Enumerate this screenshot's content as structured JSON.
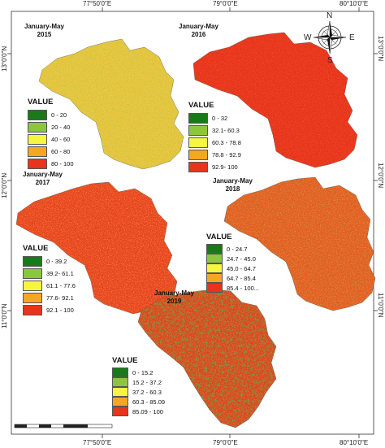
{
  "coordinates": {
    "top": [
      "77°50'0\"E",
      "79°0'0\"E",
      "80°10'0\"E"
    ],
    "bottom": [
      "77°50'0\"E",
      "79°0'0\"E",
      "80°10'0\"E"
    ],
    "left": [
      "13°0'0\"N",
      "12°0'0\"N",
      "11°0'0\"N"
    ],
    "right": [
      "13°0'0\"N",
      "12°0'0\"N",
      "11°0'0\"N"
    ]
  },
  "compass": {
    "n": "N",
    "s": "S",
    "e": "E",
    "w": "W"
  },
  "maps": [
    {
      "title_line1": "January-May",
      "title_line2": "2015",
      "legend_title": "VALUE",
      "classes": [
        {
          "label": "0 - 20",
          "color": "#1a7a1a"
        },
        {
          "label": "20 - 40",
          "color": "#8cc63e"
        },
        {
          "label": "40 - 60",
          "color": "#f5f542"
        },
        {
          "label": "60 - 80",
          "color": "#f5a623"
        },
        {
          "label": "80 - 100",
          "color": "#e8341c"
        }
      ]
    },
    {
      "title_line1": "January-May",
      "title_line2": "2016",
      "legend_title": "VALUE",
      "classes": [
        {
          "label": "0 - 32",
          "color": "#1a7a1a"
        },
        {
          "label": "32.1- 60.3",
          "color": "#8cc63e"
        },
        {
          "label": "60.3 - 78.8",
          "color": "#f5f542"
        },
        {
          "label": "78.8 - 92.9",
          "color": "#f5a623"
        },
        {
          "label": "92.9- 100",
          "color": "#e8341c"
        }
      ]
    },
    {
      "title_line1": "January-May",
      "title_line2": "2017",
      "legend_title": "VALUE",
      "classes": [
        {
          "label": "0 - 39.2",
          "color": "#1a7a1a"
        },
        {
          "label": "39.2- 61.1",
          "color": "#8cc63e"
        },
        {
          "label": "61.1 - 77.6",
          "color": "#f5f542"
        },
        {
          "label": "77.6- 92.1",
          "color": "#f5a623"
        },
        {
          "label": "92.1 - 100",
          "color": "#e8341c"
        }
      ]
    },
    {
      "title_line1": "January-May",
      "title_line2": "2018",
      "legend_title": "VALUE",
      "classes": [
        {
          "label": "0 - 24.7",
          "color": "#1a7a1a"
        },
        {
          "label": "24.7 - 45.0",
          "color": "#8cc63e"
        },
        {
          "label": "45.0 - 64.7",
          "color": "#f5f542"
        },
        {
          "label": "64.7 - 85.4",
          "color": "#f5a623"
        },
        {
          "label": "85.4 - 100...",
          "color": "#e8341c"
        }
      ]
    },
    {
      "title_line1": "January-May",
      "title_line2": "2019",
      "legend_title": "VALUE",
      "classes": [
        {
          "label": "0 - 15.2",
          "color": "#1a7a1a"
        },
        {
          "label": "15.2 - 37.2",
          "color": "#8cc63e"
        },
        {
          "label": "37.2 - 60.3",
          "color": "#f5f542"
        },
        {
          "label": "60.3 - 85.09",
          "color": "#f5a623"
        },
        {
          "label": "85.09 - 100",
          "color": "#e8341c"
        }
      ]
    }
  ]
}
